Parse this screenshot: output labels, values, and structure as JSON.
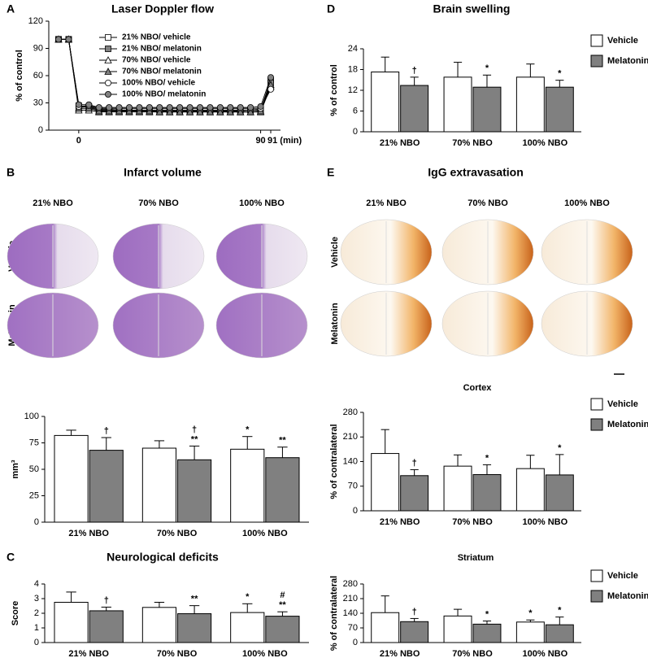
{
  "chart_data": [
    {
      "type": "line",
      "panel": "A",
      "title": "Laser Doppler flow",
      "ylabel": "% of control",
      "line_color": "#000000",
      "categories": [
        null,
        null,
        "0",
        null,
        null,
        null,
        null,
        null,
        null,
        null,
        null,
        null,
        null,
        null,
        null,
        null,
        null,
        null,
        null,
        null,
        "90",
        "91 (min)"
      ],
      "series": [
        {
          "name": "21% NBO/ vehicle",
          "color": "#ffffff",
          "marker": "square",
          "values": [
            100,
            100,
            27,
            25,
            22,
            22,
            22,
            22,
            21,
            21,
            21,
            21,
            21,
            21,
            21,
            21,
            21,
            21,
            21,
            22,
            22,
            55
          ]
        },
        {
          "name": "21% NBO/ melatonin",
          "color": "#808080",
          "marker": "square",
          "values": [
            100,
            100,
            25,
            26,
            23,
            23,
            22,
            22,
            22,
            22,
            22,
            22,
            22,
            22,
            22,
            22,
            22,
            22,
            22,
            22,
            23,
            52
          ]
        },
        {
          "name": "70% NBO/ vehicle",
          "color": "#ffffff",
          "marker": "triangle",
          "values": [
            100,
            100,
            22,
            22,
            20,
            20,
            20,
            20,
            20,
            20,
            20,
            20,
            20,
            20,
            20,
            20,
            20,
            20,
            20,
            20,
            20,
            48
          ]
        },
        {
          "name": "70% NBO/ melatonin",
          "color": "#808080",
          "marker": "triangle",
          "values": [
            100,
            100,
            24,
            24,
            21,
            21,
            21,
            21,
            21,
            21,
            20,
            20,
            20,
            20,
            20,
            20,
            20,
            20,
            20,
            20,
            21,
            50
          ]
        },
        {
          "name": "100% NBO/ vehicle",
          "color": "#ffffff",
          "marker": "circle",
          "values": [
            100,
            100,
            26,
            27,
            24,
            24,
            24,
            24,
            24,
            24,
            24,
            24,
            24,
            24,
            24,
            24,
            24,
            24,
            24,
            24,
            24,
            45
          ]
        },
        {
          "name": "100% NBO/ melatonin",
          "color": "#808080",
          "marker": "circle",
          "values": [
            100,
            100,
            28,
            28,
            25,
            25,
            25,
            25,
            25,
            25,
            25,
            25,
            25,
            25,
            25,
            25,
            25,
            25,
            25,
            25,
            26,
            58
          ]
        }
      ],
      "ylim": [
        0,
        120
      ],
      "yticks": [
        0,
        30,
        60,
        90,
        120
      ],
      "legend": "top"
    },
    {
      "type": "bar",
      "ylabel": "mm³",
      "categories": [
        "21% NBO",
        "70% NBO",
        "100% NBO"
      ],
      "series": [
        {
          "color": "#ffffff",
          "values": [
            82,
            70,
            69
          ],
          "errors": [
            5,
            7,
            12
          ],
          "annotations": [
            [],
            [],
            [
              "*"
            ]
          ]
        },
        {
          "color": "#808080",
          "values": [
            68,
            59,
            61
          ],
          "errors": [
            12,
            13,
            10
          ],
          "annotations": [
            [
              "†"
            ],
            [
              "†",
              "**"
            ],
            [
              "**"
            ]
          ]
        }
      ],
      "ylim": [
        0,
        100
      ],
      "yticks": [
        0,
        25,
        50,
        75,
        100
      ]
    },
    {
      "type": "bar",
      "panel": "C",
      "title": "Neurological deficits",
      "ylabel": "Score",
      "categories": [
        "21% NBO",
        "70% NBO",
        "100% NBO"
      ],
      "series": [
        {
          "color": "#ffffff",
          "values": [
            2.75,
            2.4,
            2.05
          ],
          "errors": [
            0.7,
            0.35,
            0.6
          ],
          "annotations": [
            [],
            [],
            [
              "*"
            ]
          ]
        },
        {
          "color": "#808080",
          "values": [
            2.17,
            1.97,
            1.8
          ],
          "errors": [
            0.25,
            0.55,
            0.3
          ],
          "annotations": [
            [
              "†"
            ],
            [
              "**"
            ],
            [
              "#",
              "**"
            ]
          ]
        }
      ],
      "ylim": [
        0,
        4
      ],
      "yticks": [
        0,
        1,
        2,
        3,
        4
      ]
    },
    {
      "type": "bar",
      "panel": "D",
      "title": "Brain swelling",
      "ylabel": "% of control",
      "categories": [
        "21% NBO",
        "70% NBO",
        "100% NBO"
      ],
      "series": [
        {
          "name": "Vehicle",
          "color": "#ffffff",
          "values": [
            17.3,
            15.8,
            15.8
          ],
          "errors": [
            4.3,
            4.3,
            3.8
          ],
          "annotations": [
            [],
            [],
            []
          ]
        },
        {
          "name": "Melatonin",
          "color": "#808080",
          "values": [
            13.4,
            12.9,
            12.9
          ],
          "errors": [
            2.4,
            3.5,
            2.0
          ],
          "annotations": [
            [
              "†"
            ],
            [
              "*"
            ],
            [
              "*"
            ]
          ]
        }
      ],
      "ylim": [
        0,
        24
      ],
      "yticks": [
        0,
        6,
        12,
        18,
        24
      ],
      "legend": "right"
    },
    {
      "type": "bar",
      "title": "Cortex",
      "ylabel": "% of contralateral",
      "categories": [
        "21% NBO",
        "70% NBO",
        "100% NBO"
      ],
      "series": [
        {
          "name": "Vehicle",
          "color": "#ffffff",
          "values": [
            163,
            127,
            120
          ],
          "errors": [
            68,
            32,
            38
          ],
          "annotations": [
            [],
            [],
            []
          ]
        },
        {
          "name": "Melatonin",
          "color": "#808080",
          "values": [
            100,
            103,
            102
          ],
          "errors": [
            17,
            28,
            58
          ],
          "annotations": [
            [
              "†"
            ],
            [
              "*"
            ],
            [
              "*"
            ]
          ]
        }
      ],
      "ylim": [
        0,
        280
      ],
      "yticks": [
        0,
        70,
        140,
        210,
        280
      ],
      "legend": "right"
    },
    {
      "type": "bar",
      "title": "Striatum",
      "ylabel": "% of contralateral",
      "categories": [
        "21% NBO",
        "70% NBO",
        "100% NBO"
      ],
      "series": [
        {
          "name": "Vehicle",
          "color": "#ffffff",
          "values": [
            143,
            127,
            98
          ],
          "errors": [
            80,
            32,
            10
          ],
          "annotations": [
            [],
            [],
            [
              "*"
            ]
          ]
        },
        {
          "name": "Melatonin",
          "color": "#808080",
          "values": [
            100,
            88,
            85
          ],
          "errors": [
            15,
            15,
            37
          ],
          "annotations": [
            [
              "†"
            ],
            [
              "*"
            ],
            [
              "*"
            ]
          ]
        }
      ],
      "ylim": [
        0,
        280
      ],
      "yticks": [
        0,
        70,
        140,
        210,
        280
      ],
      "legend": "right"
    }
  ],
  "image_panels": [
    {
      "panel": "B",
      "title": "Infarct volume",
      "columns": [
        "21% NBO",
        "70% NBO",
        "100% NBO"
      ],
      "rows": [
        "Vehicle",
        "Melatonin"
      ]
    },
    {
      "panel": "E",
      "title": "IgG extravasation",
      "columns": [
        "21% NBO",
        "70% NBO",
        "100% NBO"
      ],
      "rows": [
        "Vehicle",
        "Melatonin"
      ]
    }
  ]
}
